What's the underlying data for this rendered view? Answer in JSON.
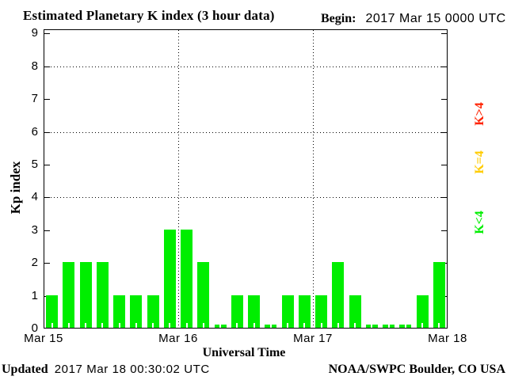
{
  "title": "Estimated Planetary K index (3 hour data)",
  "begin": {
    "label": "Begin:",
    "value": "2017 Mar 15 0000 UTC"
  },
  "chart_data": {
    "type": "bar",
    "title": "Estimated Planetary K index (3 hour data)",
    "xlabel": "Universal Time",
    "ylabel": "Kp index",
    "ylim": [
      0,
      9
    ],
    "y_ticks": [
      0,
      1,
      2,
      3,
      4,
      5,
      6,
      7,
      8,
      9
    ],
    "x_ticks": [
      "Mar 15",
      "Mar 16",
      "Mar 17",
      "Mar 18"
    ],
    "grid_y_dotted": [
      4,
      6,
      8
    ],
    "grid_x_dotted_at_day_boundaries": [
      "Mar 16",
      "Mar 17"
    ],
    "start": "2017 Mar 15 0000 UTC",
    "interval_hours": 3,
    "values": [
      1,
      2,
      2,
      2,
      1,
      1,
      1,
      3,
      3,
      2,
      0,
      1,
      1,
      0,
      1,
      1,
      1,
      2,
      1,
      0,
      0,
      0,
      1,
      2
    ],
    "colors": {
      "k_lt_4": "#00ee00",
      "k_eq_4": "#ffcc00",
      "k_gt_4": "#ff2200"
    }
  },
  "legend": [
    {
      "label": "K>4",
      "color": "#ff2200"
    },
    {
      "label": "K=4",
      "color": "#ffcc00"
    },
    {
      "label": "K<4",
      "color": "#00ee00"
    }
  ],
  "footer": {
    "updated_label": "Updated",
    "updated_value": "2017 Mar 18 00:30:02 UTC",
    "credit": "NOAA/SWPC Boulder, CO USA"
  }
}
